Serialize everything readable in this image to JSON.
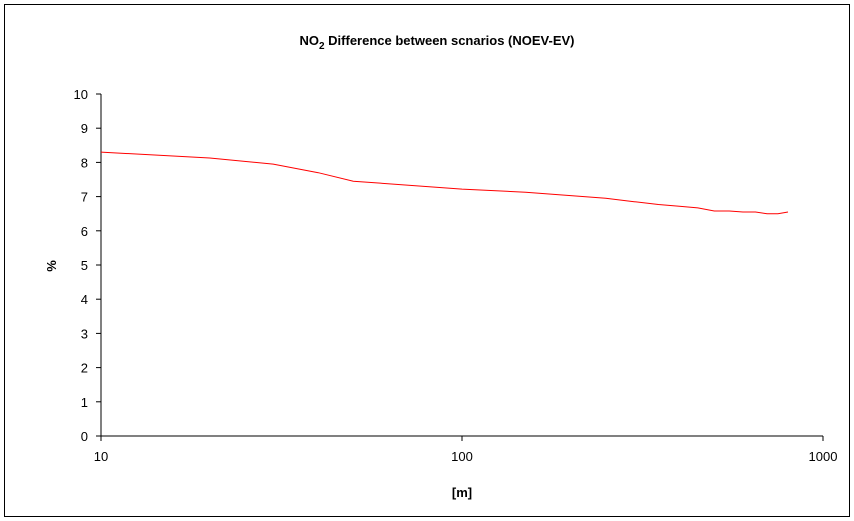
{
  "chart_data": {
    "type": "line",
    "title": "NO",
    "title_subscript": "2",
    "title_rest": " Difference between scnarios (NOEV-EV)",
    "xlabel": "[m]",
    "ylabel": "%",
    "xscale": "log",
    "xlim": [
      10,
      1000
    ],
    "ylim": [
      0,
      10
    ],
    "xticks": [
      10,
      100,
      1000
    ],
    "xtick_labels": [
      "10",
      "100",
      "1000"
    ],
    "yticks": [
      0,
      1,
      2,
      3,
      4,
      5,
      6,
      7,
      8,
      9,
      10
    ],
    "ytick_labels": [
      "0",
      "1",
      "2",
      "3",
      "4",
      "5",
      "6",
      "7",
      "8",
      "9",
      "10"
    ],
    "grid": false,
    "legend": false,
    "series": [
      {
        "color": "#ff0000",
        "x": [
          10,
          20,
          30,
          40,
          50,
          100,
          150,
          200,
          250,
          300,
          350,
          400,
          450,
          500,
          550,
          600,
          650,
          700,
          750,
          800
        ],
        "y": [
          8.3,
          8.13,
          7.95,
          7.7,
          7.45,
          7.22,
          7.13,
          7.03,
          6.95,
          6.85,
          6.77,
          6.72,
          6.67,
          6.58,
          6.58,
          6.55,
          6.55,
          6.5,
          6.5,
          6.55
        ]
      }
    ]
  }
}
